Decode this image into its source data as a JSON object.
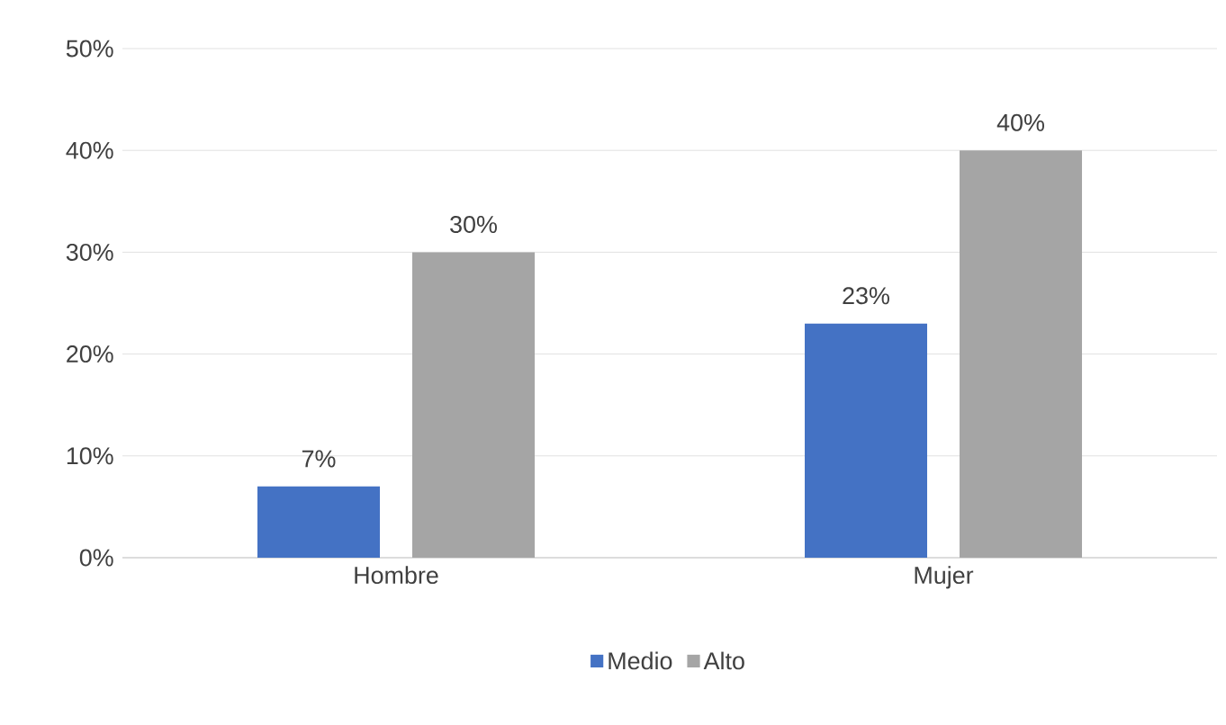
{
  "chart_data": {
    "type": "bar",
    "categories": [
      "Hombre",
      "Mujer"
    ],
    "series": [
      {
        "name": "Medio",
        "color": "#4472c4",
        "values": [
          7,
          23
        ],
        "value_labels": [
          "7%",
          "23%"
        ]
      },
      {
        "name": "Alto",
        "color": "#a5a5a5",
        "values": [
          30,
          40
        ],
        "value_labels": [
          "30%",
          "40%"
        ]
      }
    ],
    "ylim": [
      0,
      50
    ],
    "yticks": [
      {
        "value": 0,
        "label": "0%"
      },
      {
        "value": 10,
        "label": "10%"
      },
      {
        "value": 20,
        "label": "20%"
      },
      {
        "value": 30,
        "label": "30%"
      },
      {
        "value": 40,
        "label": "40%"
      },
      {
        "value": 50,
        "label": "50%"
      }
    ],
    "grid": "y",
    "legend": "bottom"
  }
}
